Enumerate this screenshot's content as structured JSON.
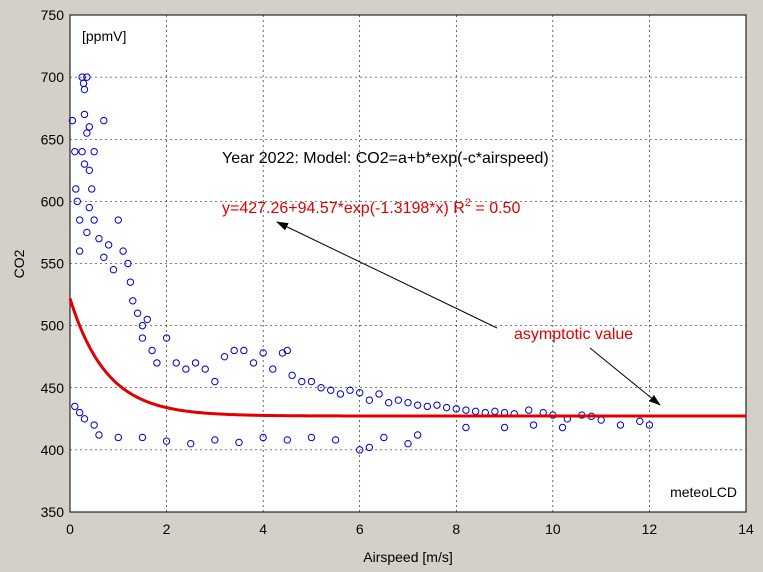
{
  "chart_data": {
    "type": "scatter",
    "title": "Year 2022: Model: CO2=a+b*exp(-c*airspeed)",
    "xlabel": "Airspeed [m/s]",
    "ylabel": "CO2",
    "unit_label": "[ppmV]",
    "credit": "meteoLCD",
    "xlim": [
      0,
      14
    ],
    "ylim": [
      350,
      750
    ],
    "xticks": [
      0,
      2,
      4,
      6,
      8,
      10,
      12,
      14
    ],
    "yticks": [
      350,
      400,
      450,
      500,
      550,
      600,
      650,
      700,
      750
    ],
    "grid": true,
    "fit": {
      "a": 427.26,
      "b": 94.57,
      "c": 1.3198,
      "equation_prefix": "y=427.26+94.57*exp(-1.3198*x)  R",
      "equation_sup": "2",
      "equation_suffix": " = 0.50",
      "color": "#e00000"
    },
    "annotation": {
      "text": "asymptotic value",
      "color": "#e00000"
    },
    "marker_color": "#0000cc",
    "series": [
      {
        "points": [
          [
            0.05,
            665
          ],
          [
            0.1,
            640
          ],
          [
            0.12,
            610
          ],
          [
            0.15,
            600
          ],
          [
            0.2,
            585
          ],
          [
            0.25,
            700
          ],
          [
            0.28,
            695
          ],
          [
            0.3,
            690
          ],
          [
            0.35,
            700
          ],
          [
            0.3,
            670
          ],
          [
            0.35,
            655
          ],
          [
            0.4,
            660
          ],
          [
            0.25,
            640
          ],
          [
            0.3,
            630
          ],
          [
            0.4,
            625
          ],
          [
            0.45,
            610
          ],
          [
            0.5,
            640
          ],
          [
            0.7,
            665
          ],
          [
            0.2,
            560
          ],
          [
            0.35,
            575
          ],
          [
            0.4,
            595
          ],
          [
            0.5,
            585
          ],
          [
            0.6,
            570
          ],
          [
            0.7,
            555
          ],
          [
            0.8,
            565
          ],
          [
            0.9,
            545
          ],
          [
            1.0,
            585
          ],
          [
            1.1,
            560
          ],
          [
            1.2,
            550
          ],
          [
            1.25,
            535
          ],
          [
            1.3,
            520
          ],
          [
            1.4,
            510
          ],
          [
            1.5,
            500
          ],
          [
            1.6,
            505
          ],
          [
            1.5,
            490
          ],
          [
            1.7,
            480
          ],
          [
            1.8,
            470
          ],
          [
            2.0,
            490
          ],
          [
            2.2,
            470
          ],
          [
            2.4,
            465
          ],
          [
            2.6,
            470
          ],
          [
            2.8,
            465
          ],
          [
            3.0,
            455
          ],
          [
            3.2,
            475
          ],
          [
            3.4,
            480
          ],
          [
            3.6,
            480
          ],
          [
            3.8,
            470
          ],
          [
            4.0,
            478
          ],
          [
            4.4,
            478
          ],
          [
            4.5,
            480
          ],
          [
            4.2,
            465
          ],
          [
            4.6,
            460
          ],
          [
            4.8,
            455
          ],
          [
            5.0,
            455
          ],
          [
            5.2,
            450
          ],
          [
            5.4,
            448
          ],
          [
            5.6,
            445
          ],
          [
            5.8,
            448
          ],
          [
            6.0,
            446
          ],
          [
            6.2,
            440
          ],
          [
            6.4,
            445
          ],
          [
            6.6,
            438
          ],
          [
            6.8,
            440
          ],
          [
            7.0,
            438
          ],
          [
            7.2,
            436
          ],
          [
            7.4,
            435
          ],
          [
            7.6,
            436
          ],
          [
            7.8,
            434
          ],
          [
            8.0,
            433
          ],
          [
            8.2,
            432
          ],
          [
            8.4,
            431
          ],
          [
            8.6,
            430
          ],
          [
            8.8,
            431
          ],
          [
            9.0,
            430
          ],
          [
            9.2,
            429
          ],
          [
            9.5,
            432
          ],
          [
            9.8,
            430
          ],
          [
            10.0,
            428
          ],
          [
            10.3,
            425
          ],
          [
            10.6,
            428
          ],
          [
            10.8,
            427
          ],
          [
            11.0,
            424
          ],
          [
            11.4,
            420
          ],
          [
            11.8,
            423
          ],
          [
            12.0,
            420
          ],
          [
            10.2,
            418
          ],
          [
            9.6,
            420
          ],
          [
            9.0,
            418
          ],
          [
            8.2,
            418
          ],
          [
            7.2,
            412
          ],
          [
            7.0,
            405
          ],
          [
            6.5,
            410
          ],
          [
            6.2,
            402
          ],
          [
            6.0,
            400
          ],
          [
            5.5,
            408
          ],
          [
            5.0,
            410
          ],
          [
            4.5,
            408
          ],
          [
            4.0,
            410
          ],
          [
            3.5,
            406
          ],
          [
            3.0,
            408
          ],
          [
            2.5,
            405
          ],
          [
            2.0,
            407
          ],
          [
            1.5,
            410
          ],
          [
            1.0,
            410
          ],
          [
            0.6,
            412
          ],
          [
            0.5,
            420
          ],
          [
            0.3,
            425
          ],
          [
            0.2,
            430
          ],
          [
            0.1,
            435
          ]
        ]
      }
    ]
  }
}
